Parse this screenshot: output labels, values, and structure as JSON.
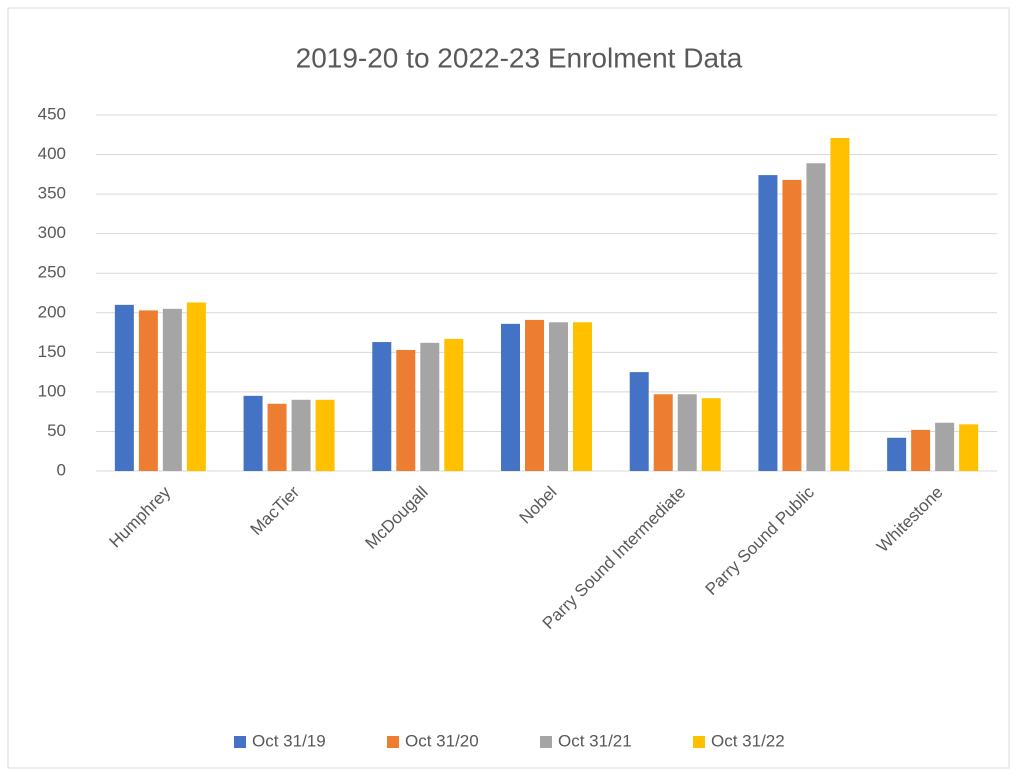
{
  "chart_data": {
    "type": "bar",
    "title": "2019-20 to 2022-23 Enrolment Data",
    "categories": [
      "Humphrey",
      "MacTier",
      "McDougall",
      "Nobel",
      "Parry Sound Intermediate",
      "Parry Sound Public",
      "Whitestone"
    ],
    "series": [
      {
        "name": "Oct 31/19",
        "color": "#4472c4",
        "values": [
          210,
          95,
          163,
          186,
          125,
          374,
          42
        ]
      },
      {
        "name": "Oct 31/20",
        "color": "#ed7d31",
        "values": [
          203,
          85,
          153,
          191,
          97,
          368,
          52
        ]
      },
      {
        "name": "Oct 31/21",
        "color": "#a5a5a5",
        "values": [
          205,
          90,
          162,
          188,
          97,
          389,
          61
        ]
      },
      {
        "name": "Oct 31/22",
        "color": "#ffc000",
        "values": [
          213,
          90,
          167,
          188,
          92,
          421,
          59
        ]
      }
    ],
    "ylim": [
      0,
      450
    ],
    "yticks": [
      0,
      50,
      100,
      150,
      200,
      250,
      300,
      350,
      400,
      450
    ],
    "grid": true,
    "legend": "bottom"
  }
}
